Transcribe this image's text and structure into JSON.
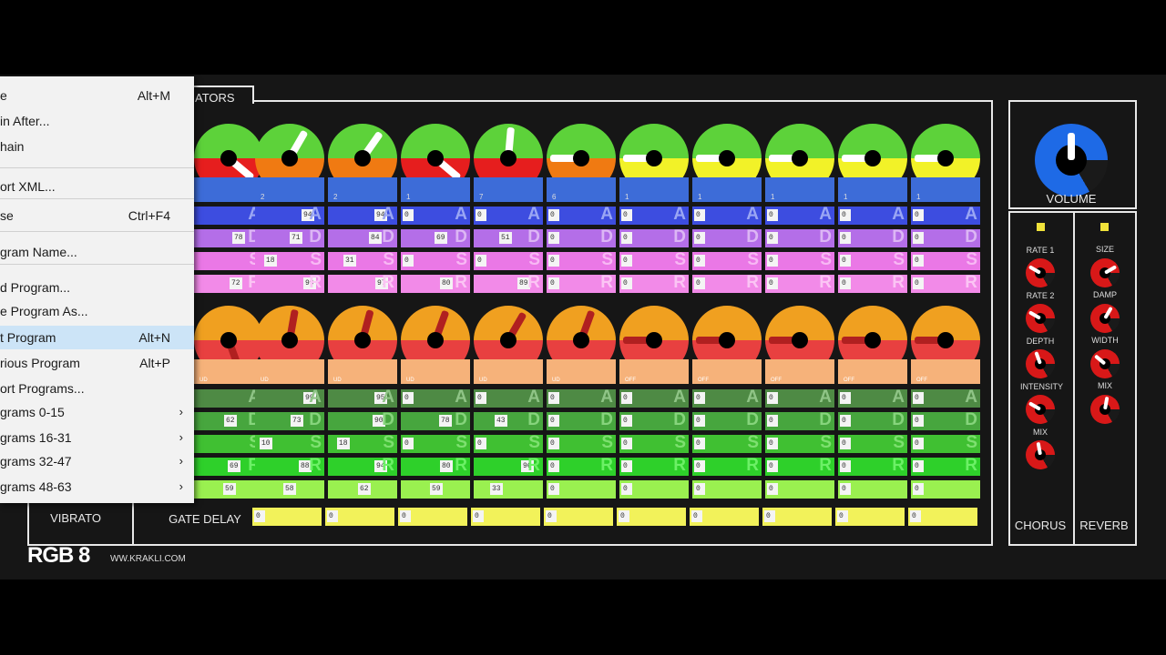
{
  "app": {
    "brand": "RGB 8",
    "website": "WW.KRAKLI.COM",
    "tab_label": "ATORS"
  },
  "colors": {
    "osc_top_green": "#5dd23a",
    "osc_orange": "#f07a12",
    "osc_red": "#e61e1e",
    "osc_yellow": "#f2f228",
    "lfo_orange": "#f0a020",
    "lfo_red": "#e84040",
    "lfo_dark_pointer": "#b02020",
    "attack_blue": "#3d4de0",
    "decay_purple": "#b46ee8",
    "sustain_pink": "#ea78e6",
    "release_pink": "#f28ae8",
    "volume_blue": "#1e6ae6",
    "chorus_red": "#d81818"
  },
  "osc_row": {
    "knobs": [
      {
        "lower": "red",
        "angle": 40
      },
      {
        "lower": "orange",
        "angle": -60
      },
      {
        "lower": "orange",
        "angle": -55
      },
      {
        "lower": "red",
        "angle": 40
      },
      {
        "lower": "red",
        "angle": -85
      },
      {
        "lower": "orange",
        "angle": 180
      },
      {
        "lower": "yellow",
        "angle": 180
      },
      {
        "lower": "yellow",
        "angle": 180
      },
      {
        "lower": "yellow",
        "angle": 180
      },
      {
        "lower": "yellow",
        "angle": 180
      },
      {
        "lower": "yellow",
        "angle": 180
      }
    ],
    "tab_numbers": [
      "",
      "2",
      "2",
      "1",
      "7",
      "6",
      "1",
      "1",
      "1",
      "1",
      "1"
    ]
  },
  "osc_env": {
    "A": [
      "",
      "94",
      "94",
      "0",
      "0",
      "0",
      "0",
      "0",
      "0",
      "0",
      "0"
    ],
    "D": [
      "78",
      "71",
      "84",
      "69",
      "51",
      "0",
      "0",
      "0",
      "0",
      "0",
      "0"
    ],
    "S": [
      "",
      "18",
      "31",
      "0",
      "0",
      "0",
      "0",
      "0",
      "0",
      "0",
      "0"
    ],
    "R": [
      "72",
      "99",
      "97",
      "80",
      "89",
      "0",
      "0",
      "0",
      "0",
      "0",
      "0"
    ]
  },
  "lfo_row": {
    "knobs": [
      {
        "angle": 70
      },
      {
        "angle": -80
      },
      {
        "angle": -75
      },
      {
        "angle": -70
      },
      {
        "angle": -60
      },
      {
        "angle": -70
      },
      {
        "angle": 180
      },
      {
        "angle": 180
      },
      {
        "angle": 180
      },
      {
        "angle": 180
      },
      {
        "angle": 180
      }
    ],
    "tab_labels": [
      "UD",
      "UD",
      "UD",
      "UD",
      "UD",
      "UD",
      "OFF",
      "OFF",
      "OFF",
      "OFF",
      "OFF"
    ]
  },
  "filter_env": {
    "A": [
      "",
      "99",
      "95",
      "0",
      "0",
      "0",
      "0",
      "0",
      "0",
      "0",
      "0"
    ],
    "D": [
      "62",
      "73",
      "90",
      "78",
      "43",
      "0",
      "0",
      "0",
      "0",
      "0",
      "0"
    ],
    "S": [
      "",
      "10",
      "18",
      "0",
      "0",
      "0",
      "0",
      "0",
      "0",
      "0",
      "0"
    ],
    "R": [
      "69",
      "88",
      "94",
      "80",
      "96",
      "0",
      "0",
      "0",
      "0",
      "0",
      "0"
    ],
    "extra": [
      "59",
      "58",
      "62",
      "59",
      "33",
      "0",
      "0",
      "0",
      "0",
      "0",
      "0"
    ]
  },
  "gate_delay": {
    "label": "GATE DELAY",
    "values": [
      "0",
      "0",
      "0",
      "0",
      "0",
      "0",
      "0",
      "0",
      "0",
      "0"
    ]
  },
  "vibrato": {
    "label": "VIBRATO"
  },
  "volume": {
    "label": "VOLUME"
  },
  "chorus": {
    "label": "CHORUS",
    "knobs": [
      "RATE 1",
      "RATE 2",
      "DEPTH",
      "INTENSITY",
      "MIX"
    ]
  },
  "reverb": {
    "label": "REVERB",
    "knobs": [
      "SIZE",
      "DAMP",
      "WIDTH",
      "MIX"
    ]
  },
  "menu": {
    "items": [
      {
        "label": "e",
        "shortcut": "Alt+M"
      },
      {
        "label": "in After...",
        "shortcut": ""
      },
      {
        "label": "hain",
        "shortcut": ""
      },
      {
        "label": "ort XML...",
        "shortcut": ""
      },
      {
        "label": "se",
        "shortcut": "Ctrl+F4"
      },
      {
        "label": "gram Name...",
        "shortcut": ""
      },
      {
        "label": "d Program...",
        "shortcut": ""
      },
      {
        "label": "e Program As...",
        "shortcut": ""
      },
      {
        "label": "t Program",
        "shortcut": "Alt+N"
      },
      {
        "label": "rious Program",
        "shortcut": "Alt+P"
      },
      {
        "label": "ort Programs...",
        "shortcut": ""
      },
      {
        "label": "grams 0-15",
        "shortcut": ""
      },
      {
        "label": "grams 16-31",
        "shortcut": ""
      },
      {
        "label": "grams 32-47",
        "shortcut": ""
      },
      {
        "label": "grams 48-63",
        "shortcut": ""
      }
    ],
    "selected_index": 8
  }
}
